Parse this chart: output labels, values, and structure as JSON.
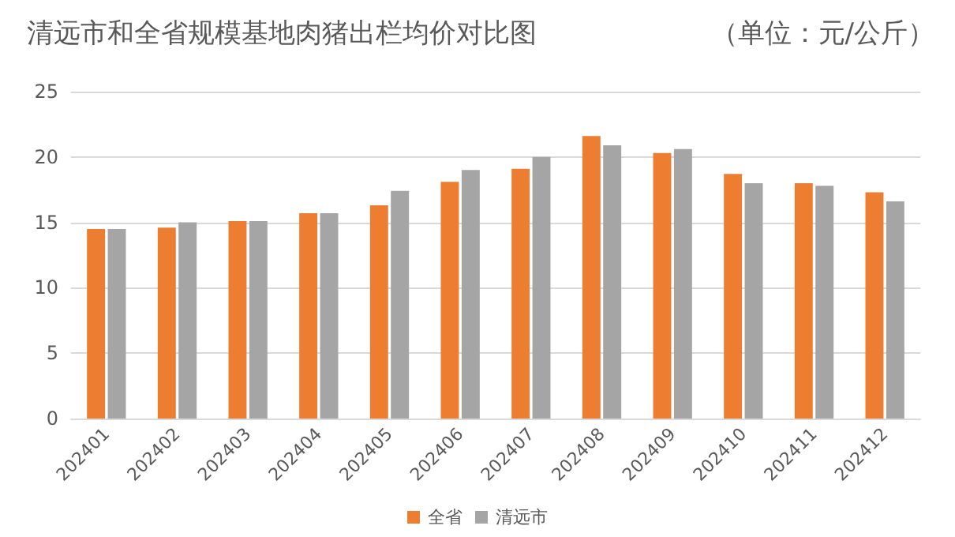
{
  "chart_data": {
    "type": "bar",
    "title": "清远市和全省规模基地肉猪出栏均价对比图",
    "subtitle": "（单位：元/公斤）",
    "categories": [
      "202401",
      "202402",
      "202403",
      "202404",
      "202405",
      "202406",
      "202407",
      "202408",
      "202409",
      "202410",
      "202411",
      "202412"
    ],
    "series": [
      {
        "name": "全省",
        "color": "#ed7d31",
        "values": [
          14.5,
          14.6,
          15.1,
          15.7,
          16.3,
          18.1,
          19.1,
          21.6,
          20.3,
          18.7,
          18.0,
          17.3
        ]
      },
      {
        "name": "清远市",
        "color": "#a5a5a5",
        "values": [
          14.5,
          15.0,
          15.1,
          15.7,
          17.4,
          19.0,
          20.0,
          20.9,
          20.6,
          18.0,
          17.8,
          16.6
        ]
      }
    ],
    "ylim": [
      0,
      25
    ],
    "yticks": [
      0,
      5,
      10,
      15,
      20,
      25
    ],
    "grid": "y",
    "legend": "bottom"
  }
}
